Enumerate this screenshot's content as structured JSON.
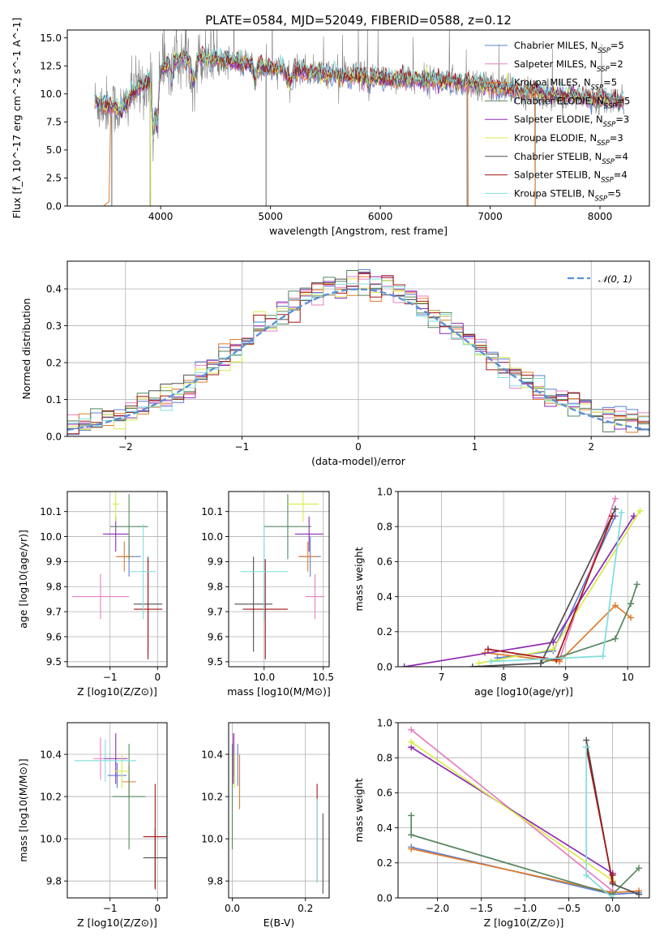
{
  "figure_title": "PLATE=0584, MJD=52049, FIBERID=0588, z=0.12",
  "colors": {
    "Chabrier MILES": "#5b7fd6",
    "Salpeter MILES": "#e87fc2",
    "Kroupa MILES": "#e07b2c",
    "Chabrier ELODIE": "#55875f",
    "Salpeter ELODIE": "#8e2ab5",
    "Kroupa ELODIE": "#d9ea4a",
    "Chabrier STELIB": "#505050",
    "Salpeter STELIB": "#a51515",
    "Kroupa STELIB": "#7fdddd",
    "data": "#808080",
    "normal": "#5b8fd6"
  },
  "chart_data": [
    {
      "type": "line",
      "xlabel": "wavelength [Angstrom, rest frame]",
      "ylabel": "Flux [f_λ 10^-17 erg cm^-2 s^-1 A^-1]",
      "xlim": [
        3150,
        8450
      ],
      "ylim": [
        0,
        15.7
      ],
      "xticks": [
        4000,
        5000,
        6000,
        7000,
        8000
      ],
      "yticks": [
        0.0,
        2.5,
        5.0,
        7.5,
        10.0,
        12.5,
        15.0
      ],
      "legend_position": "upper-right",
      "legend": [
        {
          "model": "Chabrier MILES",
          "nssp": "5"
        },
        {
          "model": "Salpeter MILES",
          "nssp": "2"
        },
        {
          "model": "Kroupa MILES",
          "nssp": "5"
        },
        {
          "model": "Chabrier ELODIE",
          "nssp": "5"
        },
        {
          "model": "Salpeter ELODIE",
          "nssp": "3"
        },
        {
          "model": "Kroupa ELODIE",
          "nssp": "3"
        },
        {
          "model": "Chabrier STELIB",
          "nssp": "4"
        },
        {
          "model": "Salpeter STELIB",
          "nssp": "4"
        },
        {
          "model": "Kroupa STELIB",
          "nssp": "5"
        }
      ],
      "continuum": [
        [
          3400,
          9.2
        ],
        [
          3550,
          8.9
        ],
        [
          3650,
          8.5
        ],
        [
          3750,
          10.2
        ],
        [
          3900,
          11.2
        ],
        [
          4000,
          12.2
        ],
        [
          4100,
          13.0
        ],
        [
          4300,
          13.3
        ],
        [
          4600,
          13.0
        ],
        [
          5000,
          12.3
        ],
        [
          5500,
          11.8
        ],
        [
          6000,
          11.4
        ],
        [
          6500,
          11.2
        ],
        [
          6800,
          11.0
        ],
        [
          7000,
          10.6
        ],
        [
          7500,
          10.0
        ],
        [
          8000,
          9.5
        ],
        [
          8200,
          9.3
        ]
      ]
    },
    {
      "type": "histogram",
      "xlabel": "(data-model)/error",
      "ylabel": "Normed distribution",
      "xlim": [
        -2.5,
        2.5
      ],
      "ylim": [
        0,
        0.475
      ],
      "xticks": [
        -2,
        -1,
        0,
        1,
        2
      ],
      "yticks": [
        0.0,
        0.1,
        0.2,
        0.3,
        0.4
      ],
      "legend": "𝒩(0, 1)",
      "legend_position": "upper-right",
      "bin_width": 0.1,
      "curve": "normal pdf, mean 0, sd 1"
    },
    {
      "type": "scatter",
      "subtype": "errorbar",
      "xlabel": "Z [log10(Z/Z⊙)]",
      "ylabel": "age  [log10(age/yr)]",
      "xlim": [
        -1.9,
        0.2
      ],
      "ylim": [
        9.48,
        10.18
      ],
      "xticks": [
        -1,
        0
      ],
      "yticks": [
        9.5,
        9.6,
        9.7,
        9.8,
        9.9,
        10.0,
        10.1
      ],
      "points": [
        {
          "model": "Chabrier MILES",
          "x": -0.6,
          "xerr": 0.25,
          "y": 9.92,
          "yerr": 0.08
        },
        {
          "model": "Salpeter MILES",
          "x": -1.2,
          "xerr": 0.6,
          "y": 9.76,
          "yerr": 0.09
        },
        {
          "model": "Kroupa MILES",
          "x": -0.7,
          "xerr": 0.18,
          "y": 9.92,
          "yerr": 0.06
        },
        {
          "model": "Chabrier ELODIE",
          "x": -0.6,
          "xerr": 0.4,
          "y": 10.04,
          "yerr": 0.13
        },
        {
          "model": "Salpeter ELODIE",
          "x": -0.88,
          "xerr": 0.27,
          "y": 10.01,
          "yerr": 0.07
        },
        {
          "model": "Kroupa ELODIE",
          "x": -0.88,
          "xerr": 0.07,
          "y": 10.13,
          "yerr": 0.07
        },
        {
          "model": "Chabrier STELIB",
          "x": -0.2,
          "xerr": 0.3,
          "y": 9.73,
          "yerr": 0.19
        },
        {
          "model": "Salpeter STELIB",
          "x": -0.2,
          "xerr": 0.3,
          "y": 9.71,
          "yerr": 0.2
        },
        {
          "model": "Kroupa STELIB",
          "x": -0.3,
          "xerr": 0.27,
          "y": 9.86,
          "yerr": 0.19
        }
      ]
    },
    {
      "type": "scatter",
      "subtype": "errorbar",
      "xlabel": "mass [log10(M/M⊙)]",
      "ylabel": "",
      "xlim": [
        9.7,
        10.55
      ],
      "ylim": [
        9.48,
        10.18
      ],
      "xticks": [
        10.0,
        10.5
      ],
      "yticks": [
        9.5,
        9.6,
        9.7,
        9.8,
        9.9,
        10.0,
        10.1
      ],
      "points": [
        {
          "model": "Chabrier MILES",
          "x": 10.39,
          "xerr": 0.09,
          "y": 9.92,
          "yerr": 0.08
        },
        {
          "model": "Salpeter MILES",
          "x": 10.43,
          "xerr": 0.08,
          "y": 9.76,
          "yerr": 0.09
        },
        {
          "model": "Kroupa MILES",
          "x": 10.37,
          "xerr": 0.08,
          "y": 9.92,
          "yerr": 0.06
        },
        {
          "model": "Chabrier ELODIE",
          "x": 10.2,
          "xerr": 0.2,
          "y": 10.04,
          "yerr": 0.13
        },
        {
          "model": "Salpeter ELODIE",
          "x": 10.38,
          "xerr": 0.12,
          "y": 10.01,
          "yerr": 0.07
        },
        {
          "model": "Kroupa ELODIE",
          "x": 10.33,
          "xerr": 0.13,
          "y": 10.13,
          "yerr": 0.07
        },
        {
          "model": "Chabrier STELIB",
          "x": 9.91,
          "xerr": 0.16,
          "y": 9.73,
          "yerr": 0.19
        },
        {
          "model": "Salpeter STELIB",
          "x": 10.01,
          "xerr": 0.19,
          "y": 9.71,
          "yerr": 0.2
        },
        {
          "model": "Kroupa STELIB",
          "x": 10.0,
          "xerr": 0.2,
          "y": 9.86,
          "yerr": 0.19
        }
      ]
    },
    {
      "type": "line",
      "xlabel": "age  [log10(age/yr)]",
      "ylabel": "mass weight",
      "xlim": [
        6.3,
        10.35
      ],
      "ylim": [
        0,
        1.0
      ],
      "xticks": [
        7,
        8,
        9,
        10
      ],
      "yticks": [
        0.0,
        0.2,
        0.4,
        0.6,
        0.8,
        1.0
      ],
      "series": [
        {
          "model": "Chabrier MILES",
          "x": [
            7.9,
            8.8,
            9.8
          ],
          "y": [
            0.05,
            0.09,
            0.86
          ]
        },
        {
          "model": "Salpeter MILES",
          "x": [
            8.9,
            9.8
          ],
          "y": [
            0.04,
            0.96
          ]
        },
        {
          "model": "Kroupa MILES",
          "x": [
            7.7,
            8.9,
            9.8,
            10.05
          ],
          "y": [
            0.08,
            0.03,
            0.35,
            0.28
          ]
        },
        {
          "model": "Chabrier ELODIE",
          "x": [
            8.6,
            9.8,
            10.05,
            10.15
          ],
          "y": [
            0.02,
            0.16,
            0.36,
            0.47
          ]
        },
        {
          "model": "Salpeter ELODIE",
          "x": [
            6.4,
            8.8,
            10.1
          ],
          "y": [
            0.0,
            0.14,
            0.86
          ]
        },
        {
          "model": "Kroupa ELODIE",
          "x": [
            7.6,
            8.8,
            10.2
          ],
          "y": [
            0.02,
            0.1,
            0.89
          ]
        },
        {
          "model": "Chabrier STELIB",
          "x": [
            7.5,
            8.6,
            9.8
          ],
          "y": [
            0.0,
            0.02,
            0.9
          ]
        },
        {
          "model": "Salpeter STELIB",
          "x": [
            7.75,
            8.85,
            9.75
          ],
          "y": [
            0.1,
            0.04,
            0.86
          ]
        },
        {
          "model": "Kroupa STELIB",
          "x": [
            7.8,
            9.6,
            9.9
          ],
          "y": [
            0.03,
            0.06,
            0.88
          ]
        }
      ]
    },
    {
      "type": "scatter",
      "subtype": "errorbar",
      "xlabel": "Z [log10(Z/Z⊙)]",
      "ylabel": "mass [log10(M/M⊙)]",
      "xlim": [
        -1.9,
        0.2
      ],
      "ylim": [
        9.72,
        10.55
      ],
      "xticks": [
        -1,
        0
      ],
      "yticks": [
        9.8,
        10.0,
        10.2,
        10.4
      ],
      "points": [
        {
          "model": "Chabrier MILES",
          "x": -0.85,
          "xerr": 0.2,
          "y": 10.3,
          "yerr": 0.06
        },
        {
          "model": "Salpeter MILES",
          "x": -1.2,
          "xerr": 0.15,
          "y": 10.38,
          "yerr": 0.1
        },
        {
          "model": "Kroupa MILES",
          "x": -0.6,
          "xerr": 0.15,
          "y": 10.27,
          "yerr": 0.08
        },
        {
          "model": "Chabrier ELODIE",
          "x": -0.6,
          "xerr": 0.35,
          "y": 10.2,
          "yerr": 0.25
        },
        {
          "model": "Salpeter ELODIE",
          "x": -0.88,
          "xerr": 0.25,
          "y": 10.38,
          "yerr": 0.12
        },
        {
          "model": "Kroupa ELODIE",
          "x": -0.75,
          "xerr": 0.15,
          "y": 10.32,
          "yerr": 0.08
        },
        {
          "model": "Chabrier STELIB",
          "x": -0.05,
          "xerr": 0.25,
          "y": 9.91,
          "yerr": 0.14
        },
        {
          "model": "Salpeter STELIB",
          "x": -0.05,
          "xerr": 0.25,
          "y": 10.01,
          "yerr": 0.25
        },
        {
          "model": "Kroupa STELIB",
          "x": -1.1,
          "xerr": 0.65,
          "y": 10.37,
          "yerr": 0.1
        }
      ]
    },
    {
      "type": "scatter",
      "subtype": "errorbar",
      "xlabel": "E(B-V)",
      "ylabel": "",
      "xlim": [
        -0.01,
        0.265
      ],
      "ylim": [
        9.72,
        10.55
      ],
      "xticks": [
        0.0,
        0.2
      ],
      "yticks": [
        9.8,
        10.0,
        10.2,
        10.4
      ],
      "points": [
        {
          "model": "Chabrier MILES",
          "x": 0.015,
          "xerr": 0,
          "y": 10.35,
          "yerr": 0.1
        },
        {
          "model": "Salpeter MILES",
          "x": 0.005,
          "xerr": 0,
          "y": 10.4,
          "yerr": 0.1
        },
        {
          "model": "Kroupa MILES",
          "x": 0.02,
          "xerr": 0,
          "y": 10.27,
          "yerr": 0.13
        },
        {
          "model": "Chabrier ELODIE",
          "x": 0.0,
          "xerr": 0,
          "y": 10.2,
          "yerr": 0.25
        },
        {
          "model": "Salpeter ELODIE",
          "x": 0.003,
          "xerr": 0,
          "y": 10.38,
          "yerr": 0.12
        },
        {
          "model": "Kroupa ELODIE",
          "x": 0.006,
          "xerr": 0,
          "y": 10.32,
          "yerr": 0.08
        },
        {
          "model": "Chabrier STELIB",
          "x": 0.248,
          "xerr": 0,
          "y": 9.93,
          "yerr": 0.19
        },
        {
          "model": "Salpeter STELIB",
          "x": 0.232,
          "xerr": 0,
          "y": 10.03,
          "yerr": 0.23
        },
        {
          "model": "Kroupa STELIB",
          "x": 0.232,
          "xerr": 0,
          "y": 9.99,
          "yerr": 0.2
        }
      ]
    },
    {
      "type": "line",
      "xlabel": "Z [log10(Z/Z⊙)]",
      "ylabel": "mass weight",
      "xlim": [
        -2.45,
        0.42
      ],
      "ylim": [
        0,
        1.0
      ],
      "xticks": [
        -2.0,
        -1.5,
        -1.0,
        -0.5,
        0.0
      ],
      "yticks": [
        0.0,
        0.2,
        0.4,
        0.6,
        0.8,
        1.0
      ],
      "series": [
        {
          "model": "Chabrier MILES",
          "x": [
            -2.3,
            0.0,
            0.3
          ],
          "y": [
            0.29,
            0.02,
            0.03
          ]
        },
        {
          "model": "Salpeter MILES",
          "x": [
            -2.3,
            0.0
          ],
          "y": [
            0.96,
            0.04
          ]
        },
        {
          "model": "Kroupa MILES",
          "x": [
            -2.3,
            0.0,
            0.3
          ],
          "y": [
            0.28,
            0.03,
            0.04
          ]
        },
        {
          "model": "Chabrier ELODIE",
          "x": [
            -2.3,
            -2.3,
            0.0,
            0.3
          ],
          "y": [
            0.47,
            0.36,
            0.02,
            0.17
          ]
        },
        {
          "model": "Salpeter ELODIE",
          "x": [
            -2.3,
            0.0
          ],
          "y": [
            0.86,
            0.14
          ]
        },
        {
          "model": "Kroupa ELODIE",
          "x": [
            -2.3,
            0.0
          ],
          "y": [
            0.89,
            0.1
          ]
        },
        {
          "model": "Chabrier STELIB",
          "x": [
            -0.3,
            0.0,
            0.3
          ],
          "y": [
            0.9,
            0.08,
            0.02
          ]
        },
        {
          "model": "Salpeter STELIB",
          "x": [
            -0.3,
            0.0,
            0.0
          ],
          "y": [
            0.86,
            0.09,
            0.13
          ]
        },
        {
          "model": "Kroupa STELIB",
          "x": [
            -0.3,
            -0.3,
            0.0
          ],
          "y": [
            0.86,
            0.13,
            0.0
          ]
        }
      ]
    }
  ]
}
